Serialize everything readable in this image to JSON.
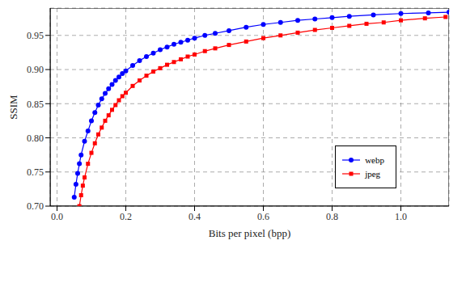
{
  "chart_data": {
    "type": "line",
    "x_label": "Bits per pixel (bpp)",
    "y_label": "SSIM",
    "xlim": [
      -0.02,
      1.14
    ],
    "ylim": [
      0.7,
      0.99
    ],
    "xticks": [
      {
        "value": 0,
        "label": "0.0"
      },
      {
        "value": 0.2,
        "label": "0.2"
      },
      {
        "value": 0.4,
        "label": "0.4"
      },
      {
        "value": 0.6,
        "label": "0.6"
      },
      {
        "value": 0.8,
        "label": "0.8"
      },
      {
        "value": 1,
        "label": "1.0"
      }
    ],
    "yticks": [
      {
        "value": 0.7,
        "label": "0.70"
      },
      {
        "value": 0.75,
        "label": "0.75"
      },
      {
        "value": 0.8,
        "label": "0.80"
      },
      {
        "value": 0.85,
        "label": "0.85"
      },
      {
        "value": 0.9,
        "label": "0.90"
      },
      {
        "value": 0.95,
        "label": "0.95"
      }
    ],
    "grid": true,
    "legend": "right",
    "series": [
      {
        "name": "webp",
        "color": "#0000ff",
        "marker": "circle",
        "line_style": "solid",
        "x": [
          0.05,
          0.055,
          0.06,
          0.065,
          0.07,
          0.08,
          0.09,
          0.1,
          0.11,
          0.12,
          0.13,
          0.14,
          0.15,
          0.16,
          0.17,
          0.18,
          0.19,
          0.2,
          0.22,
          0.24,
          0.26,
          0.28,
          0.3,
          0.32,
          0.34,
          0.36,
          0.38,
          0.4,
          0.43,
          0.46,
          0.5,
          0.55,
          0.6,
          0.65,
          0.7,
          0.75,
          0.8,
          0.85,
          0.92,
          1.0,
          1.08,
          1.14
        ],
        "values": [
          0.713,
          0.732,
          0.748,
          0.762,
          0.775,
          0.795,
          0.81,
          0.825,
          0.837,
          0.848,
          0.857,
          0.865,
          0.872,
          0.878,
          0.884,
          0.889,
          0.894,
          0.898,
          0.906,
          0.913,
          0.919,
          0.924,
          0.929,
          0.933,
          0.937,
          0.94,
          0.943,
          0.946,
          0.95,
          0.953,
          0.957,
          0.962,
          0.966,
          0.969,
          0.972,
          0.974,
          0.976,
          0.978,
          0.98,
          0.982,
          0.983,
          0.984
        ]
      },
      {
        "name": "jpeg",
        "color": "#ff0000",
        "marker": "square",
        "line_style": "solid",
        "x": [
          0.065,
          0.07,
          0.075,
          0.08,
          0.09,
          0.1,
          0.11,
          0.12,
          0.13,
          0.14,
          0.15,
          0.16,
          0.17,
          0.18,
          0.19,
          0.2,
          0.22,
          0.24,
          0.26,
          0.28,
          0.3,
          0.32,
          0.34,
          0.36,
          0.38,
          0.4,
          0.43,
          0.46,
          0.5,
          0.55,
          0.6,
          0.65,
          0.7,
          0.75,
          0.8,
          0.85,
          0.9,
          0.95,
          1.0,
          1.07,
          1.13
        ],
        "values": [
          0.7,
          0.716,
          0.73,
          0.742,
          0.762,
          0.778,
          0.792,
          0.805,
          0.815,
          0.825,
          0.833,
          0.841,
          0.848,
          0.855,
          0.861,
          0.866,
          0.876,
          0.884,
          0.891,
          0.897,
          0.902,
          0.907,
          0.911,
          0.915,
          0.919,
          0.922,
          0.927,
          0.931,
          0.936,
          0.941,
          0.946,
          0.95,
          0.954,
          0.958,
          0.961,
          0.964,
          0.967,
          0.969,
          0.972,
          0.975,
          0.977
        ]
      }
    ]
  }
}
